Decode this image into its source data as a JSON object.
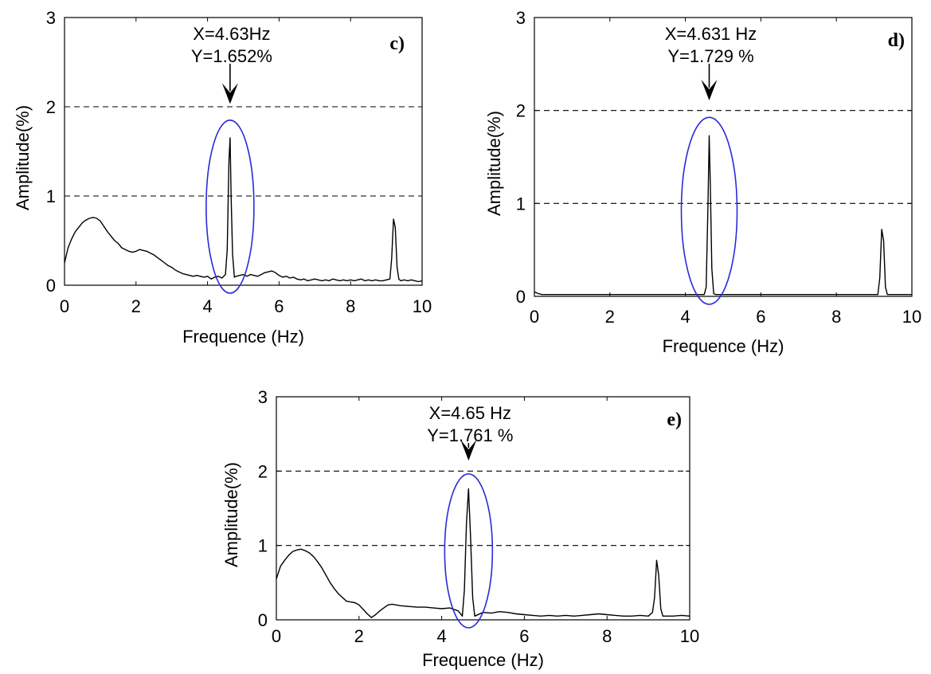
{
  "chart_data": [
    {
      "type": "line",
      "panel": "c)",
      "xlabel": "Frequence (Hz)",
      "ylabel": "Amplitude(%)",
      "xlim": [
        0,
        10
      ],
      "ylim": [
        0,
        3
      ],
      "xticks": [
        "0",
        "2",
        "4",
        "6",
        "8",
        "10"
      ],
      "yticks": [
        "0",
        "1",
        "2",
        "3"
      ],
      "gridlines_y": [
        1,
        2
      ],
      "grid_style": "dashed",
      "annotation": {
        "line1": "X=4.63Hz",
        "line2": "Y=1.652%",
        "x": 4.63,
        "y": 1.652
      },
      "highlight_ellipse_color": "#2b2bd9",
      "series": [
        {
          "x": [
            0.0,
            0.1,
            0.2,
            0.3,
            0.4,
            0.5,
            0.6,
            0.7,
            0.8,
            0.9,
            1.0,
            1.1,
            1.2,
            1.3,
            1.4,
            1.5,
            1.6,
            1.7,
            1.8,
            1.9,
            2.0,
            2.1,
            2.2,
            2.3,
            2.4,
            2.5,
            2.6,
            2.7,
            2.8,
            2.9,
            3.0,
            3.1,
            3.2,
            3.3,
            3.4,
            3.5,
            3.6,
            3.7,
            3.8,
            3.9,
            4.0,
            4.1,
            4.2,
            4.3,
            4.4,
            4.5,
            4.55,
            4.6,
            4.63,
            4.66,
            4.7,
            4.75,
            4.8,
            4.9,
            5.0,
            5.1,
            5.2,
            5.3,
            5.4,
            5.5,
            5.6,
            5.7,
            5.8,
            5.9,
            6.0,
            6.1,
            6.2,
            6.3,
            6.4,
            6.5,
            6.6,
            6.7,
            6.8,
            6.9,
            7.0,
            7.1,
            7.2,
            7.3,
            7.4,
            7.5,
            7.6,
            7.7,
            7.8,
            7.9,
            8.0,
            8.1,
            8.2,
            8.3,
            8.4,
            8.5,
            8.6,
            8.7,
            8.8,
            8.9,
            9.0,
            9.1,
            9.15,
            9.2,
            9.25,
            9.3,
            9.35,
            9.4,
            9.5,
            9.6,
            9.7,
            9.8,
            9.9,
            10.0
          ],
          "y": [
            0.25,
            0.42,
            0.52,
            0.6,
            0.65,
            0.7,
            0.73,
            0.75,
            0.76,
            0.75,
            0.72,
            0.66,
            0.6,
            0.55,
            0.5,
            0.47,
            0.42,
            0.4,
            0.38,
            0.37,
            0.38,
            0.4,
            0.39,
            0.38,
            0.36,
            0.34,
            0.31,
            0.28,
            0.25,
            0.22,
            0.2,
            0.17,
            0.15,
            0.13,
            0.12,
            0.11,
            0.1,
            0.11,
            0.1,
            0.09,
            0.1,
            0.07,
            0.09,
            0.1,
            0.08,
            0.12,
            0.4,
            1.4,
            1.652,
            1.0,
            0.35,
            0.09,
            0.1,
            0.11,
            0.12,
            0.1,
            0.12,
            0.11,
            0.1,
            0.12,
            0.14,
            0.15,
            0.16,
            0.14,
            0.11,
            0.09,
            0.1,
            0.08,
            0.09,
            0.07,
            0.06,
            0.07,
            0.05,
            0.06,
            0.07,
            0.06,
            0.05,
            0.06,
            0.05,
            0.07,
            0.06,
            0.05,
            0.06,
            0.05,
            0.06,
            0.05,
            0.06,
            0.07,
            0.05,
            0.06,
            0.05,
            0.06,
            0.05,
            0.05,
            0.06,
            0.07,
            0.3,
            0.74,
            0.65,
            0.2,
            0.07,
            0.05,
            0.06,
            0.05,
            0.06,
            0.05,
            0.04,
            0.05
          ]
        }
      ]
    },
    {
      "type": "line",
      "panel": "d)",
      "xlabel": "Frequence (Hz)",
      "ylabel": "Amplitude(%)",
      "xlim": [
        0,
        10
      ],
      "ylim": [
        0,
        3
      ],
      "xticks": [
        "0",
        "2",
        "4",
        "6",
        "8",
        "10"
      ],
      "yticks": [
        "0",
        "1",
        "2",
        "3"
      ],
      "gridlines_y": [
        1,
        2
      ],
      "grid_style": "dashed",
      "annotation": {
        "line1": "X=4.631 Hz",
        "line2": "Y=1.729 %",
        "x": 4.631,
        "y": 1.729
      },
      "highlight_ellipse_color": "#2b2bd9",
      "series": [
        {
          "x": [
            0.0,
            0.1,
            0.2,
            0.5,
            1.0,
            1.5,
            2.0,
            2.5,
            3.0,
            3.5,
            4.0,
            4.4,
            4.5,
            4.55,
            4.6,
            4.631,
            4.66,
            4.7,
            4.75,
            4.8,
            5.0,
            5.5,
            6.0,
            6.5,
            7.0,
            7.5,
            8.0,
            8.5,
            9.0,
            9.1,
            9.15,
            9.2,
            9.25,
            9.3,
            9.35,
            9.5,
            10.0
          ],
          "y": [
            0.05,
            0.03,
            0.02,
            0.02,
            0.02,
            0.02,
            0.02,
            0.02,
            0.02,
            0.02,
            0.02,
            0.02,
            0.02,
            0.1,
            1.0,
            1.729,
            1.2,
            0.3,
            0.03,
            0.02,
            0.02,
            0.02,
            0.02,
            0.02,
            0.02,
            0.02,
            0.02,
            0.02,
            0.02,
            0.02,
            0.2,
            0.72,
            0.6,
            0.1,
            0.02,
            0.02,
            0.02
          ]
        }
      ]
    },
    {
      "type": "line",
      "panel": "e)",
      "xlabel": "Frequence (Hz)",
      "ylabel": "Amplitude(%)",
      "xlim": [
        0,
        10
      ],
      "ylim": [
        0,
        3
      ],
      "xticks": [
        "0",
        "2",
        "4",
        "6",
        "8",
        "10"
      ],
      "yticks": [
        "0",
        "1",
        "2",
        "3"
      ],
      "gridlines_y": [
        1,
        2
      ],
      "grid_style": "dashed",
      "annotation": {
        "line1": "X=4.65 Hz",
        "line2": "Y=1.761 %",
        "x": 4.65,
        "y": 1.761
      },
      "highlight_ellipse_color": "#2b2bd9",
      "series": [
        {
          "x": [
            0.0,
            0.1,
            0.2,
            0.3,
            0.4,
            0.5,
            0.6,
            0.7,
            0.8,
            0.9,
            1.0,
            1.1,
            1.2,
            1.3,
            1.4,
            1.5,
            1.6,
            1.7,
            1.8,
            1.9,
            2.0,
            2.1,
            2.2,
            2.3,
            2.4,
            2.5,
            2.6,
            2.7,
            2.8,
            2.9,
            3.0,
            3.2,
            3.4,
            3.6,
            3.8,
            4.0,
            4.2,
            4.4,
            4.5,
            4.55,
            4.6,
            4.65,
            4.7,
            4.75,
            4.8,
            5.0,
            5.2,
            5.4,
            5.6,
            5.8,
            6.0,
            6.2,
            6.4,
            6.6,
            6.8,
            7.0,
            7.2,
            7.4,
            7.6,
            7.8,
            8.0,
            8.2,
            8.4,
            8.6,
            8.8,
            9.0,
            9.1,
            9.15,
            9.2,
            9.25,
            9.3,
            9.35,
            9.4,
            9.6,
            9.8,
            10.0
          ],
          "y": [
            0.55,
            0.72,
            0.8,
            0.87,
            0.92,
            0.94,
            0.95,
            0.93,
            0.9,
            0.85,
            0.78,
            0.7,
            0.6,
            0.5,
            0.42,
            0.35,
            0.3,
            0.25,
            0.24,
            0.23,
            0.2,
            0.14,
            0.08,
            0.03,
            0.07,
            0.12,
            0.16,
            0.2,
            0.21,
            0.2,
            0.19,
            0.18,
            0.17,
            0.17,
            0.16,
            0.15,
            0.16,
            0.12,
            0.05,
            0.4,
            1.3,
            1.761,
            1.1,
            0.3,
            0.05,
            0.1,
            0.09,
            0.11,
            0.1,
            0.08,
            0.07,
            0.06,
            0.05,
            0.06,
            0.05,
            0.06,
            0.05,
            0.06,
            0.07,
            0.08,
            0.07,
            0.06,
            0.05,
            0.05,
            0.06,
            0.05,
            0.1,
            0.3,
            0.8,
            0.6,
            0.15,
            0.05,
            0.05,
            0.05,
            0.06,
            0.05
          ]
        }
      ]
    }
  ]
}
